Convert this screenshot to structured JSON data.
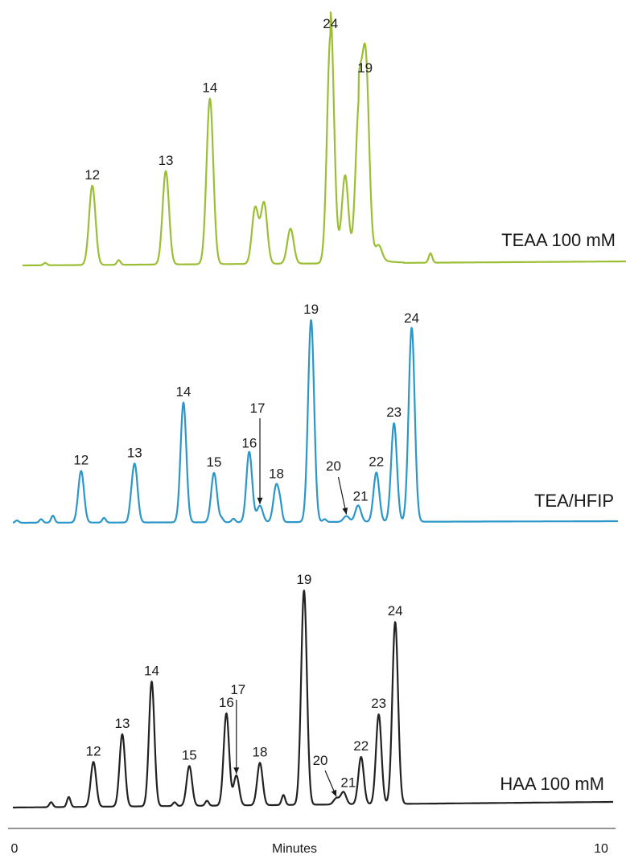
{
  "chart_data": {
    "type": "line",
    "xlabel": "Minutes",
    "xlim": [
      0,
      10
    ],
    "x_tick_labels": [
      "0",
      "10"
    ],
    "series": [
      {
        "name": "TEAA 100 mM",
        "color": "#9cbe34",
        "baseline_noise": [
          {
            "x": 0.55,
            "h": 0.01
          },
          {
            "x": 1.8,
            "h": 0.02
          },
          {
            "x": 7.1,
            "h": 0.04
          }
        ],
        "peaks": [
          {
            "label": "12",
            "x": 1.35,
            "height": 0.34
          },
          {
            "label": "13",
            "x": 2.6,
            "height": 0.4
          },
          {
            "label": "14",
            "x": 3.35,
            "height": 0.71
          },
          {
            "label": "",
            "x": 4.12,
            "height": 0.24
          },
          {
            "label": "",
            "x": 4.27,
            "height": 0.26
          },
          {
            "label": "",
            "x": 4.72,
            "height": 0.15
          },
          {
            "label": "24",
            "x": 5.4,
            "height": 0.98
          },
          {
            "label": "",
            "x": 5.65,
            "height": 0.35
          },
          {
            "label": "",
            "x": 5.88,
            "height": 0.61
          },
          {
            "label": "19",
            "x": 6.0,
            "height": 0.79
          },
          {
            "label": "",
            "x": 6.22,
            "height": 0.06
          }
        ]
      },
      {
        "name": "TEA/HFIP",
        "color": "#2b96c8",
        "baseline_noise": [
          {
            "x": 0.07,
            "h": 0.01
          },
          {
            "x": 0.48,
            "h": 0.015
          },
          {
            "x": 0.68,
            "h": 0.03
          },
          {
            "x": 1.55,
            "h": 0.02
          },
          {
            "x": 2.0,
            "h": 0.02
          },
          {
            "x": 3.55,
            "h": 0.015
          },
          {
            "x": 3.75,
            "h": 0.015
          },
          {
            "x": 4.0,
            "h": 0.012
          },
          {
            "x": 4.55,
            "h": 0.04
          },
          {
            "x": 5.3,
            "h": 0.012
          },
          {
            "x": 6.8,
            "h": 0.008
          }
        ],
        "peaks": [
          {
            "label": "12",
            "x": 1.16,
            "height": 0.22
          },
          {
            "label": "13",
            "x": 2.07,
            "height": 0.25
          },
          {
            "label": "14",
            "x": 2.9,
            "height": 0.51
          },
          {
            "label": "15",
            "x": 3.42,
            "height": 0.21
          },
          {
            "label": "16",
            "x": 4.02,
            "height": 0.29
          },
          {
            "label": "17",
            "x": 4.2,
            "height": 0.07
          },
          {
            "label": "18",
            "x": 4.48,
            "height": 0.16
          },
          {
            "label": "19",
            "x": 5.07,
            "height": 0.86
          },
          {
            "label": "20",
            "x": 5.67,
            "height": 0.025
          },
          {
            "label": "21",
            "x": 5.87,
            "height": 0.07
          },
          {
            "label": "22",
            "x": 6.18,
            "height": 0.21
          },
          {
            "label": "23",
            "x": 6.48,
            "height": 0.42
          },
          {
            "label": "24",
            "x": 6.78,
            "height": 0.82
          }
        ]
      },
      {
        "name": "HAA 100 mM",
        "color": "#222222",
        "baseline_noise": [
          {
            "x": 0.65,
            "h": 0.02
          },
          {
            "x": 0.95,
            "h": 0.04
          },
          {
            "x": 2.75,
            "h": 0.015
          },
          {
            "x": 3.3,
            "h": 0.02
          },
          {
            "x": 4.6,
            "h": 0.04
          }
        ],
        "peaks": [
          {
            "label": "12",
            "x": 1.37,
            "height": 0.18
          },
          {
            "label": "13",
            "x": 1.86,
            "height": 0.29
          },
          {
            "label": "14",
            "x": 2.36,
            "height": 0.5
          },
          {
            "label": "15",
            "x": 3.0,
            "height": 0.16
          },
          {
            "label": "16",
            "x": 3.63,
            "height": 0.37
          },
          {
            "label": "17",
            "x": 3.8,
            "height": 0.12
          },
          {
            "label": "18",
            "x": 4.2,
            "height": 0.17
          },
          {
            "label": "19",
            "x": 4.95,
            "height": 0.86
          },
          {
            "label": "20",
            "x": 5.5,
            "height": 0.025
          },
          {
            "label": "21",
            "x": 5.62,
            "height": 0.05
          },
          {
            "label": "22",
            "x": 5.92,
            "height": 0.19
          },
          {
            "label": "23",
            "x": 6.22,
            "height": 0.36
          },
          {
            "label": "24",
            "x": 6.5,
            "height": 0.73
          }
        ]
      }
    ]
  }
}
